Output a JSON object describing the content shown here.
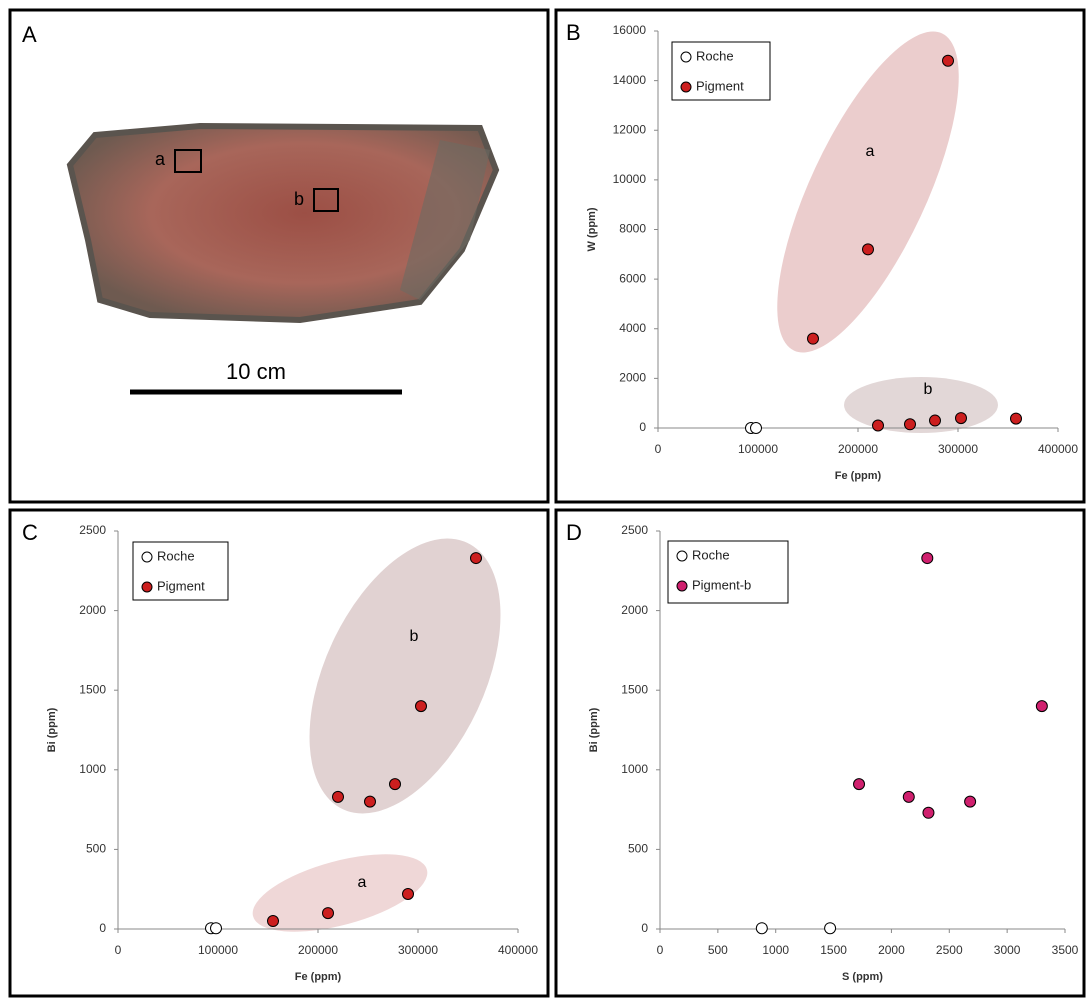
{
  "photo": {
    "panel": "A",
    "labels": [
      "a",
      "b"
    ],
    "scale_label": "10 cm"
  },
  "chart_data": [
    {
      "type": "scatter",
      "panel": "B",
      "x_label": "Fe (ppm)",
      "y_label": "W (ppm)",
      "xlim": [
        0,
        400000
      ],
      "xticks": [
        0,
        100000,
        200000,
        300000,
        400000
      ],
      "ylim": [
        0,
        16000
      ],
      "yticks": [
        0,
        2000,
        4000,
        6000,
        8000,
        10000,
        12000,
        14000,
        16000
      ],
      "annotations": [
        "a",
        "b"
      ],
      "series": [
        {
          "name": "Roche",
          "color": "#ffffff",
          "x": [
            93000,
            98000
          ],
          "values": [
            0,
            0
          ]
        },
        {
          "name": "Pigment",
          "color": "#cc1f1f",
          "x": [
            155000,
            210000,
            290000,
            220000,
            252000,
            277000,
            303000,
            358000
          ],
          "values": [
            3600,
            7200,
            14800,
            100,
            150,
            300,
            400,
            380
          ]
        }
      ]
    },
    {
      "type": "scatter",
      "panel": "C",
      "x_label": "Fe (ppm)",
      "y_label": "Bi (ppm)",
      "xlim": [
        0,
        400000
      ],
      "xticks": [
        0,
        100000,
        200000,
        300000,
        400000
      ],
      "ylim": [
        0,
        2500
      ],
      "yticks": [
        0,
        500,
        1000,
        1500,
        2000,
        2500
      ],
      "annotations": [
        "a",
        "b"
      ],
      "series": [
        {
          "name": "Roche",
          "color": "#ffffff",
          "x": [
            93000,
            98000
          ],
          "values": [
            5,
            5
          ]
        },
        {
          "name": "Pigment",
          "color": "#cc1f1f",
          "x": [
            155000,
            210000,
            290000,
            220000,
            252000,
            277000,
            303000,
            358000
          ],
          "values": [
            50,
            100,
            220,
            830,
            800,
            910,
            1400,
            2330
          ]
        }
      ]
    },
    {
      "type": "scatter",
      "panel": "D",
      "x_label": "S (ppm)",
      "y_label": "Bi (ppm)",
      "xlim": [
        0,
        3500
      ],
      "xticks": [
        0,
        500,
        1000,
        1500,
        2000,
        2500,
        3000,
        3500
      ],
      "ylim": [
        0,
        2500
      ],
      "yticks": [
        0,
        500,
        1000,
        1500,
        2000,
        2500
      ],
      "annotations": [],
      "series": [
        {
          "name": "Roche",
          "color": "#ffffff",
          "x": [
            880,
            1470
          ],
          "values": [
            5,
            5
          ]
        },
        {
          "name": "Pigment-b",
          "color": "#d0206e",
          "x": [
            1720,
            2150,
            2320,
            2310,
            2680,
            3300
          ],
          "values": [
            910,
            830,
            730,
            2330,
            800,
            1400
          ]
        }
      ]
    }
  ]
}
